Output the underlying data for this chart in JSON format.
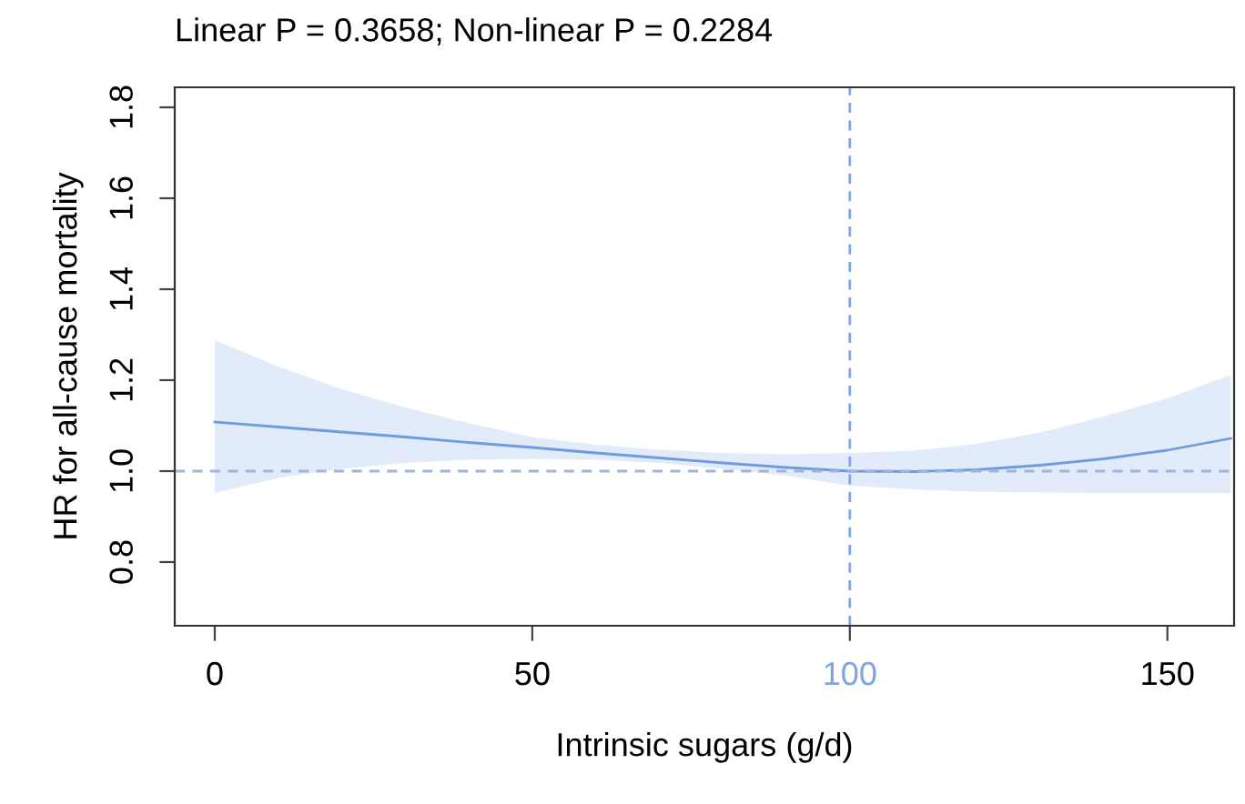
{
  "chart_data": {
    "type": "line",
    "title": "Linear P = 0.3658; Non-linear P = 0.2284",
    "xlabel": "Intrinsic sugars (g/d)",
    "ylabel": "HR for all-cause mortality",
    "x": [
      0,
      10,
      20,
      30,
      40,
      50,
      60,
      70,
      80,
      90,
      100,
      110,
      120,
      130,
      140,
      150,
      160
    ],
    "series": [
      {
        "color": "#6f9be0",
        "values": [
          1.108,
          1.097,
          1.086,
          1.075,
          1.063,
          1.052,
          1.04,
          1.029,
          1.018,
          1.008,
          1.0,
          0.999,
          1.003,
          1.013,
          1.027,
          1.046,
          1.072
        ],
        "lower": [
          0.952,
          0.985,
          1.005,
          1.018,
          1.025,
          1.027,
          1.025,
          1.018,
          1.005,
          0.99,
          0.968,
          0.96,
          0.955,
          0.953,
          0.952,
          0.952,
          0.952
        ],
        "upper": [
          1.288,
          1.23,
          1.18,
          1.14,
          1.105,
          1.075,
          1.058,
          1.047,
          1.04,
          1.037,
          1.04,
          1.045,
          1.06,
          1.085,
          1.12,
          1.16,
          1.212
        ]
      }
    ],
    "xlim": [
      -6.3,
      160.5
    ],
    "ylim": [
      0.66,
      1.844
    ],
    "xticks": [
      0,
      50,
      100,
      150
    ],
    "yticks": [
      0.8,
      {
        "value": 1,
        "label": "1.0"
      },
      1.2,
      1.4,
      1.6,
      1.8
    ],
    "ref_lines": [
      {
        "axis": "y",
        "value": 1.0,
        "color": "#9fb4dd",
        "line_style": "dashed"
      },
      {
        "axis": "x",
        "value": 100,
        "color": "#7fa6e0",
        "line_style": "dashed"
      }
    ],
    "grid": false,
    "legend": false,
    "marker": "none",
    "line_style": "solid"
  }
}
